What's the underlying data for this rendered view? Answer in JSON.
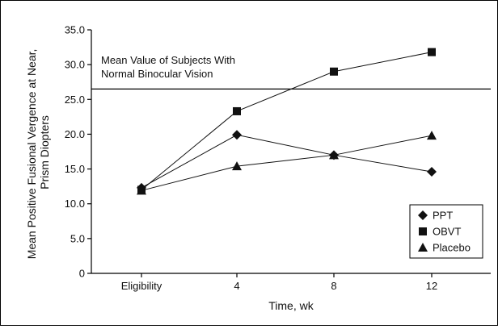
{
  "chart_data": {
    "type": "line",
    "xlabel": "Time, wk",
    "ylabel_lines": [
      "Mean Positive Fusional Vergence at Near,",
      "Prism Diopters"
    ],
    "categories": [
      "Eligibility",
      "4",
      "8",
      "12"
    ],
    "ylim": [
      0,
      35
    ],
    "yticks": [
      "0",
      "5.0",
      "10.0",
      "15.0",
      "20.0",
      "25.0",
      "30.0",
      "35.0"
    ],
    "ytick_values": [
      0,
      5,
      10,
      15,
      20,
      25,
      30,
      35
    ],
    "series": [
      {
        "name": "PPT",
        "marker": "diamond",
        "values": [
          12.3,
          19.9,
          17.0,
          14.6
        ]
      },
      {
        "name": "OBVT",
        "marker": "square",
        "values": [
          12.0,
          23.3,
          29.0,
          31.8
        ]
      },
      {
        "name": "Placebo",
        "marker": "triangle",
        "values": [
          11.9,
          15.4,
          17.0,
          19.8
        ]
      }
    ],
    "reference_line": {
      "value": 26.5,
      "label_lines": [
        "Mean Value of Subjects With",
        "Normal Binocular Vision"
      ]
    },
    "legend_position": "bottom-right",
    "grid": false,
    "color": "#111111"
  }
}
